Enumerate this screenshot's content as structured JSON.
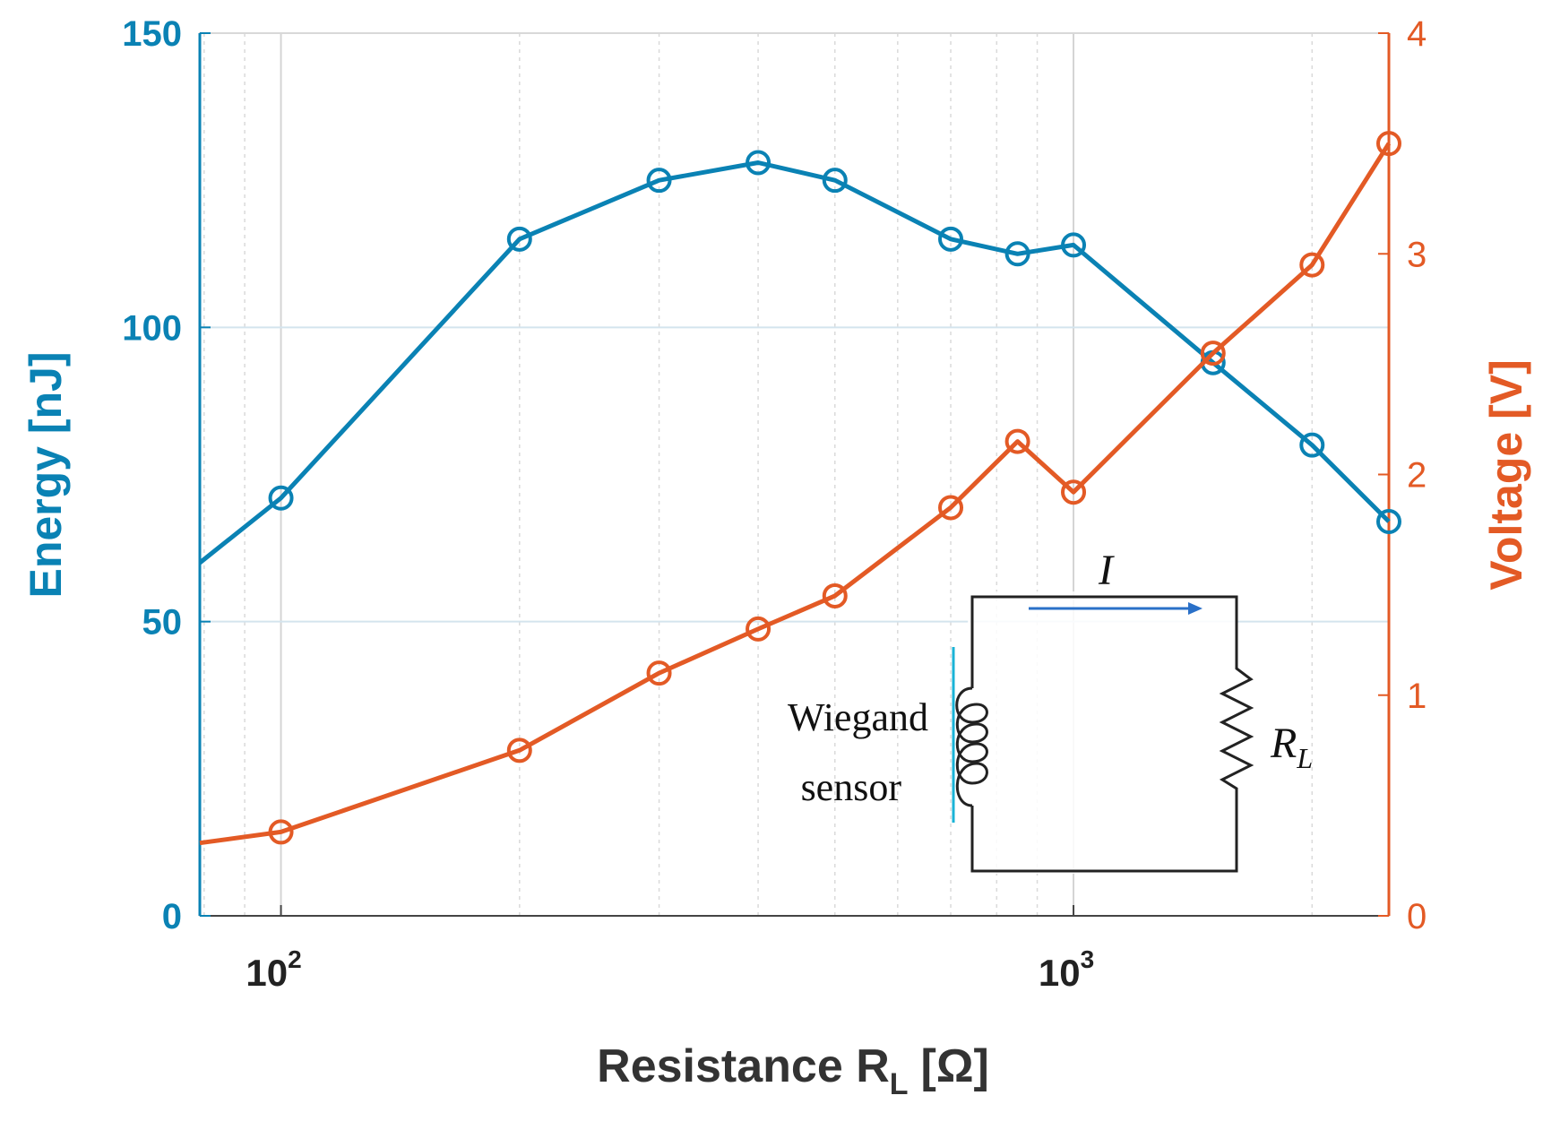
{
  "chart_data": {
    "type": "line",
    "xscale": "log",
    "xlim": [
      79,
      2500
    ],
    "xticks": [
      100,
      1000
    ],
    "xtick_labels": [
      {
        "base": "10",
        "exp": "2"
      },
      {
        "base": "10",
        "exp": "3"
      }
    ],
    "xlabel": {
      "main": "Resistance R",
      "sub": "L",
      "unit": "[Ω]"
    },
    "y_left": {
      "label": "Energy [nJ]",
      "lim": [
        0,
        150
      ],
      "ticks": [
        "0",
        "50",
        "100",
        "150"
      ],
      "color": "#0a82b4"
    },
    "y_right": {
      "label": "Voltage [V]",
      "lim": [
        0,
        4
      ],
      "ticks": [
        "0",
        "1",
        "2",
        "3",
        "4"
      ],
      "color": "#e35a25"
    },
    "grid": true,
    "series": [
      {
        "name": "Energy",
        "axis": "left",
        "color": "#0a82b4",
        "marker": "circle",
        "points": [
          [
            79,
            60
          ],
          [
            100,
            71
          ],
          [
            200,
            115
          ],
          [
            300,
            125
          ],
          [
            400,
            128
          ],
          [
            500,
            125
          ],
          [
            700,
            115
          ],
          [
            850,
            112.5
          ],
          [
            1000,
            114
          ],
          [
            1500,
            94
          ],
          [
            2000,
            80
          ],
          [
            2500,
            67
          ]
        ]
      },
      {
        "name": "Voltage",
        "axis": "right",
        "color": "#e35a25",
        "marker": "circle",
        "points": [
          [
            79,
            0.33
          ],
          [
            100,
            0.38
          ],
          [
            200,
            0.75
          ],
          [
            300,
            1.1
          ],
          [
            400,
            1.3
          ],
          [
            500,
            1.45
          ],
          [
            700,
            1.85
          ],
          [
            850,
            2.15
          ],
          [
            1000,
            1.92
          ],
          [
            1500,
            2.55
          ],
          [
            2000,
            2.95
          ],
          [
            2500,
            3.5
          ]
        ]
      }
    ],
    "inset": {
      "current_label": "I",
      "source_label_line1": "Wiegand",
      "source_label_line2": "sensor",
      "load_label": "R",
      "load_label_sub": "L"
    }
  }
}
